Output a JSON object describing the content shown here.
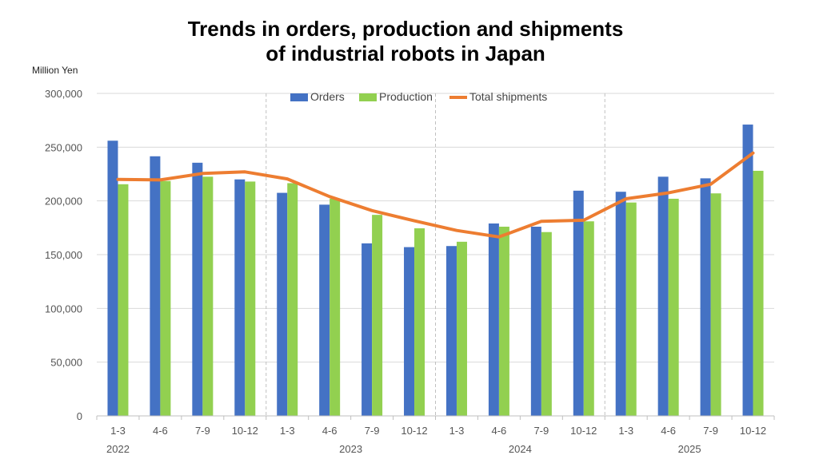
{
  "chart_data": {
    "type": "bar",
    "title_lines": [
      "Trends in orders, production and shipments",
      "of industrial robots in Japan"
    ],
    "ylabel": "Million Yen",
    "xlabel": "",
    "ylim": [
      0,
      300000
    ],
    "yticks": [
      0,
      50000,
      100000,
      150000,
      200000,
      250000,
      300000
    ],
    "ytick_labels": [
      "0",
      "50,000",
      "100,000",
      "150,000",
      "200,000",
      "250,000",
      "300,000"
    ],
    "grid": true,
    "legend_position": "top-center",
    "categories": [
      "1-3",
      "4-6",
      "7-9",
      "10-12",
      "1-3",
      "4-6",
      "7-9",
      "10-12",
      "1-3",
      "4-6",
      "7-9",
      "10-12",
      "1-3",
      "4-6",
      "7-9",
      "10-12"
    ],
    "years": [
      {
        "label": "2022",
        "start": 0,
        "count": 4
      },
      {
        "label": "2023",
        "start": 4,
        "count": 4
      },
      {
        "label": "2024",
        "start": 8,
        "count": 4
      },
      {
        "label": "2025",
        "start": 12,
        "count": 4
      }
    ],
    "series": [
      {
        "name": "Orders",
        "type": "bar",
        "color": "#4472c4",
        "values": [
          256000,
          241500,
          235500,
          220000,
          207500,
          196500,
          160500,
          157000,
          158000,
          179000,
          176000,
          209500,
          208500,
          222500,
          221000,
          271000
        ]
      },
      {
        "name": "Production",
        "type": "bar",
        "color": "#92d050",
        "values": [
          215500,
          218500,
          222500,
          218000,
          216500,
          202000,
          187000,
          174500,
          162000,
          176000,
          171000,
          181000,
          198500,
          202000,
          207000,
          228000
        ]
      },
      {
        "name": "Total shipments",
        "type": "line",
        "color": "#ed7d31",
        "values": [
          220000,
          219500,
          225500,
          227000,
          220500,
          204000,
          191000,
          181500,
          172500,
          166500,
          181000,
          182000,
          202000,
          207500,
          215500,
          244500
        ]
      }
    ]
  }
}
